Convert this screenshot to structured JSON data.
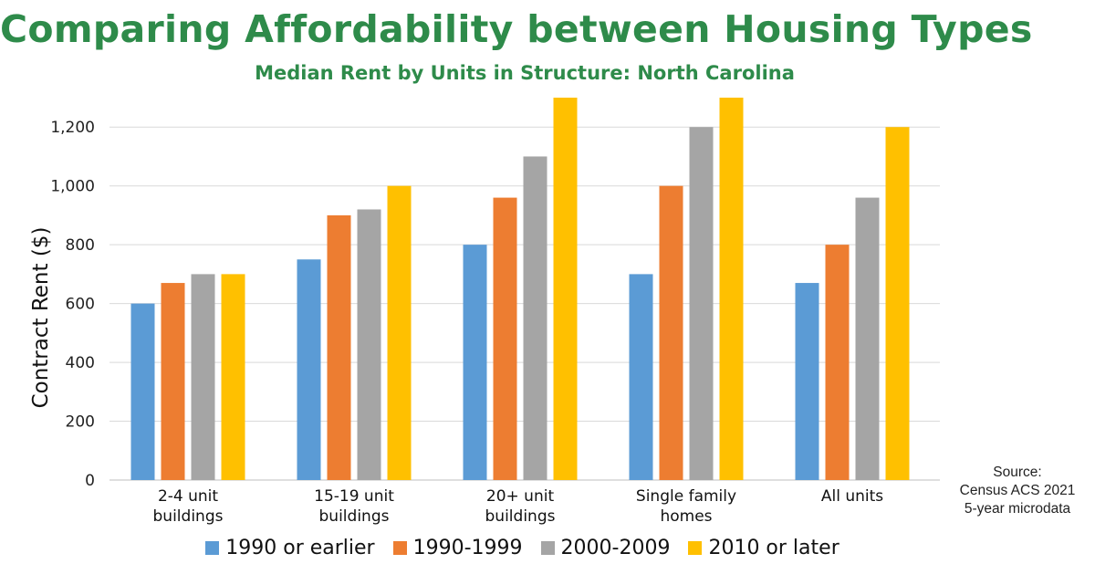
{
  "title": "Comparing Affordability between Housing Types",
  "chart_data": {
    "type": "bar",
    "title": "Median Rent by Units in Structure: North Carolina",
    "xlabel": "",
    "ylabel": "Contract Rent ($)",
    "ylim": [
      0,
      1300
    ],
    "yticks": [
      "0",
      "200",
      "400",
      "600",
      "800",
      "1,000",
      "1,200"
    ],
    "ytick_values": [
      0,
      200,
      400,
      600,
      800,
      1000,
      1200
    ],
    "grid": true,
    "legend_position": "bottom",
    "categories": [
      [
        "2-4 unit",
        "buildings"
      ],
      [
        "15-19 unit",
        "buildings"
      ],
      [
        "20+ unit",
        "buildings"
      ],
      [
        "Single family",
        "homes"
      ],
      [
        "All units"
      ]
    ],
    "series": [
      {
        "name": "1990 or earlier",
        "color": "#5b9bd5",
        "values": [
          600,
          750,
          800,
          700,
          670
        ]
      },
      {
        "name": "1990-1999",
        "color": "#ed7d31",
        "values": [
          670,
          900,
          960,
          1000,
          800
        ]
      },
      {
        "name": "2000-2009",
        "color": "#a5a5a5",
        "values": [
          700,
          920,
          1100,
          1200,
          960
        ]
      },
      {
        "name": "2010 or later",
        "color": "#ffc000",
        "values": [
          700,
          1000,
          1300,
          1300,
          1200
        ]
      }
    ]
  },
  "source": [
    "Source:",
    "Census ACS 2021",
    "5-year microdata"
  ],
  "colors": {
    "title": "#2e8b4a",
    "grid": "#d9d9d9"
  }
}
